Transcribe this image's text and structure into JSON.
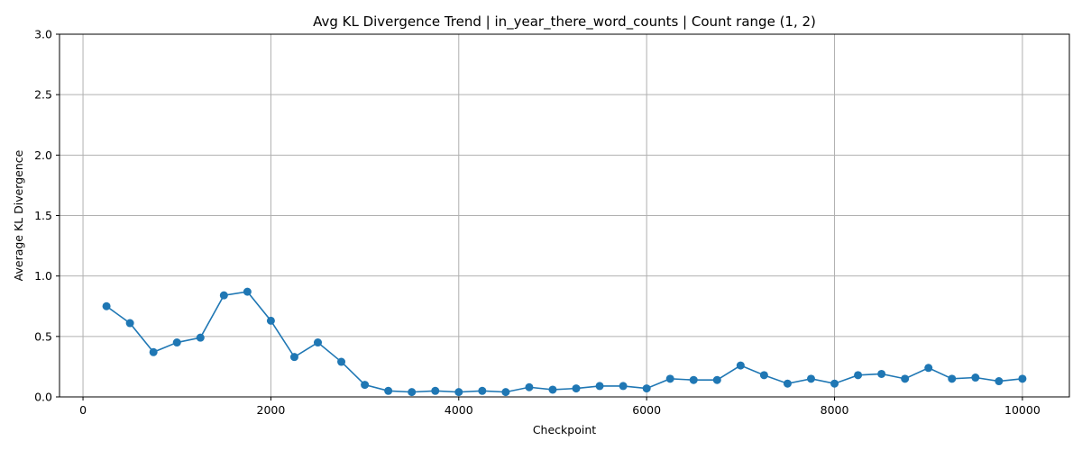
{
  "chart_data": {
    "type": "line",
    "title": "Avg KL Divergence Trend | in_year_there_word_counts | Count range (1, 2)",
    "xlabel": "Checkpoint",
    "ylabel": "Average KL Divergence",
    "xlim": [
      -250,
      10500
    ],
    "ylim": [
      0,
      3.0
    ],
    "xticks": [
      0,
      2000,
      4000,
      6000,
      8000,
      10000
    ],
    "yticks": [
      0.0,
      0.5,
      1.0,
      1.5,
      2.0,
      2.5,
      3.0
    ],
    "xtick_labels": [
      "0",
      "2000",
      "4000",
      "6000",
      "8000",
      "10000"
    ],
    "ytick_labels": [
      "0.0",
      "0.5",
      "1.0",
      "1.5",
      "2.0",
      "2.5",
      "3.0"
    ],
    "grid": true,
    "marker": "circle",
    "color": "#1f77b4",
    "x": [
      250,
      500,
      750,
      1000,
      1250,
      1500,
      1750,
      2000,
      2250,
      2500,
      2750,
      3000,
      3250,
      3500,
      3750,
      4000,
      4250,
      4500,
      4750,
      5000,
      5250,
      5500,
      5750,
      6000,
      6250,
      6500,
      6750,
      7000,
      7250,
      7500,
      7750,
      8000,
      8250,
      8500,
      8750,
      9000,
      9250,
      9500,
      9750,
      10000
    ],
    "y": [
      0.75,
      0.61,
      0.37,
      0.45,
      0.49,
      0.84,
      0.87,
      0.63,
      0.33,
      0.45,
      0.29,
      0.1,
      0.05,
      0.04,
      0.05,
      0.04,
      0.05,
      0.04,
      0.08,
      0.06,
      0.07,
      0.09,
      0.09,
      0.07,
      0.15,
      0.14,
      0.14,
      0.26,
      0.18,
      0.11,
      0.15,
      0.11,
      0.18,
      0.19,
      0.15,
      0.24,
      0.15,
      0.16,
      0.13,
      0.15
    ]
  }
}
